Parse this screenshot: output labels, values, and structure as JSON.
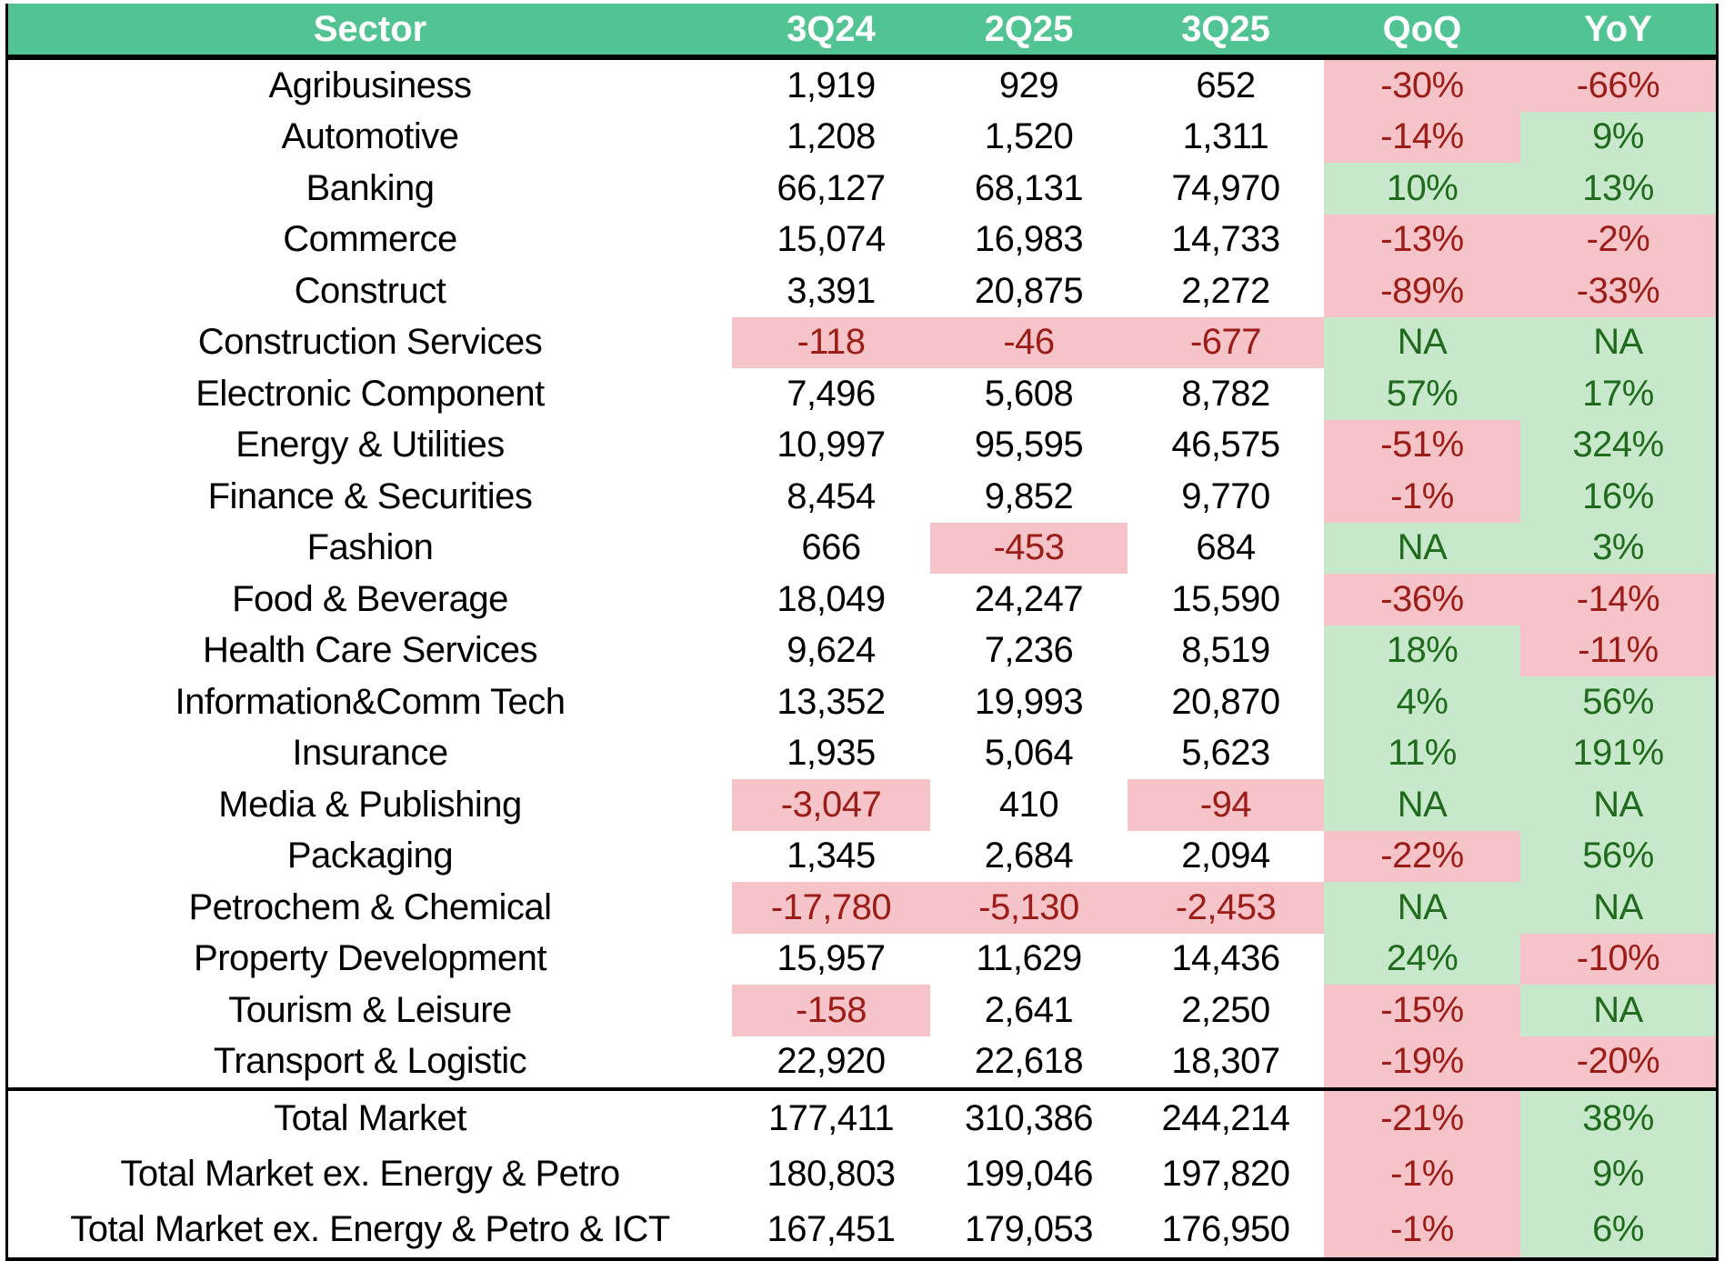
{
  "colors": {
    "header": "#52c493",
    "negative_bg": "#f5c3c8",
    "negative_text": "#9c1c17",
    "positive_bg": "#c7e8cb",
    "positive_text": "#1f6a1c"
  },
  "headers": [
    "Sector",
    "3Q24",
    "2Q25",
    "3Q25",
    "QoQ",
    "YoY"
  ],
  "rows": [
    [
      "Agribusiness",
      "1,919",
      "929",
      "652",
      "-30%",
      "-66%"
    ],
    [
      "Automotive",
      "1,208",
      "1,520",
      "1,311",
      "-14%",
      "9%"
    ],
    [
      "Banking",
      "66,127",
      "68,131",
      "74,970",
      "10%",
      "13%"
    ],
    [
      "Commerce",
      "15,074",
      "16,983",
      "14,733",
      "-13%",
      "-2%"
    ],
    [
      "Construct",
      "3,391",
      "20,875",
      "2,272",
      "-89%",
      "-33%"
    ],
    [
      "Construction Services",
      "-118",
      "-46",
      "-677",
      "NA",
      "NA"
    ],
    [
      "Electronic Component",
      "7,496",
      "5,608",
      "8,782",
      "57%",
      "17%"
    ],
    [
      "Energy & Utilities",
      "10,997",
      "95,595",
      "46,575",
      "-51%",
      "324%"
    ],
    [
      "Finance & Securities",
      "8,454",
      "9,852",
      "9,770",
      "-1%",
      "16%"
    ],
    [
      "Fashion",
      "666",
      "-453",
      "684",
      "NA",
      "3%"
    ],
    [
      "Food & Beverage",
      "18,049",
      "24,247",
      "15,590",
      "-36%",
      "-14%"
    ],
    [
      "Health Care Services",
      "9,624",
      "7,236",
      "8,519",
      "18%",
      "-11%"
    ],
    [
      "Information&Comm Tech",
      "13,352",
      "19,993",
      "20,870",
      "4%",
      "56%"
    ],
    [
      "Insurance",
      "1,935",
      "5,064",
      "5,623",
      "11%",
      "191%"
    ],
    [
      "Media & Publishing",
      "-3,047",
      "410",
      "-94",
      "NA",
      "NA"
    ],
    [
      "Packaging",
      "1,345",
      "2,684",
      "2,094",
      "-22%",
      "56%"
    ],
    [
      "Petrochem & Chemical",
      "-17,780",
      "-5,130",
      "-2,453",
      "NA",
      "NA"
    ],
    [
      "Property Development",
      "15,957",
      "11,629",
      "14,436",
      "24%",
      "-10%"
    ],
    [
      "Tourism & Leisure",
      "-158",
      "2,641",
      "2,250",
      "-15%",
      "NA"
    ],
    [
      "Transport & Logistic",
      "22,920",
      "22,618",
      "18,307",
      "-19%",
      "-20%"
    ]
  ],
  "totals": [
    [
      "Total Market",
      "177,411",
      "310,386",
      "244,214",
      "-21%",
      "38%"
    ],
    [
      "Total Market ex. Energy & Petro",
      "180,803",
      "199,046",
      "197,820",
      "-1%",
      "9%"
    ],
    [
      "Total Market ex. Energy &  Petro & ICT",
      "167,451",
      "179,053",
      "176,950",
      "-1%",
      "6%"
    ]
  ]
}
